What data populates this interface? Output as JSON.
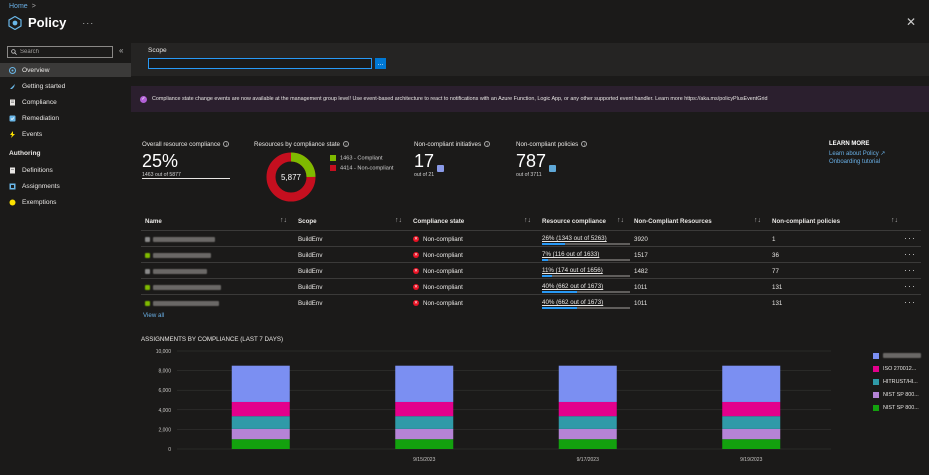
{
  "breadcrumb": {
    "home": "Home",
    "sep": ">"
  },
  "header": {
    "title": "Policy",
    "more": "···",
    "close": "✕"
  },
  "sidebar": {
    "search_placeholder": "Search",
    "collapse": "«",
    "items": [
      {
        "label": "Overview",
        "active": true,
        "icon": "overview-icon"
      },
      {
        "label": "Getting started",
        "icon": "rocket-icon"
      },
      {
        "label": "Compliance",
        "icon": "document-icon"
      },
      {
        "label": "Remediation",
        "icon": "remediation-icon"
      },
      {
        "label": "Events",
        "icon": "lightning-icon"
      }
    ],
    "authoring_heading": "Authoring",
    "authoring_items": [
      {
        "label": "Definitions",
        "icon": "definitions-icon"
      },
      {
        "label": "Assignments",
        "icon": "assignments-icon"
      },
      {
        "label": "Exemptions",
        "icon": "exemptions-icon"
      }
    ]
  },
  "scope": {
    "label": "Scope",
    "button": "..."
  },
  "banner": {
    "text": "Compliance state change events are now available at the management group level! Use event-based architecture to react to notifications with an Azure Function, Logic App, or any other supported event handler. Learn more https://aka.ms/policyPlusEventGrid"
  },
  "kpis": {
    "overall": {
      "label": "Overall resource compliance",
      "value": "25%",
      "sub": "1463 out of 5877"
    },
    "by_state": {
      "label": "Resources by compliance state",
      "total": "5,877",
      "compliant_legend": "1463 - Compliant",
      "noncompliant_legend": "4414 - Non-compliant",
      "compliant": 1463,
      "noncompliant": 4414
    },
    "initiatives": {
      "label": "Non-compliant initiatives",
      "value": "17",
      "sub": "out of 21"
    },
    "policies": {
      "label": "Non-compliant policies",
      "value": "787",
      "sub": "out of 3711"
    }
  },
  "learn_more": {
    "heading": "LEARN MORE",
    "link1": "Learn about Policy ↗",
    "link2": "Onboarding tutorial"
  },
  "table": {
    "headers": [
      "Name",
      "Scope",
      "Compliance state",
      "Resource compliance",
      "Non-Compliant Resources",
      "Non-compliant policies"
    ],
    "sort_icon": "↑↓",
    "rows": [
      {
        "scope": "BuildEnv",
        "state": "Non-compliant",
        "rc": "26% (1343 out of 5263)",
        "pct": 26,
        "ncr": "3920",
        "ncp": "1"
      },
      {
        "scope": "BuildEnv",
        "state": "Non-compliant",
        "rc": "7% (116 out of 1633)",
        "pct": 7,
        "ncr": "1517",
        "ncp": "36"
      },
      {
        "scope": "BuildEnv",
        "state": "Non-compliant",
        "rc": "11% (174 out of 1656)",
        "pct": 11,
        "ncr": "1482",
        "ncp": "77"
      },
      {
        "scope": "BuildEnv",
        "state": "Non-compliant",
        "rc": "40% (662 out of 1673)",
        "pct": 40,
        "ncr": "1011",
        "ncp": "131"
      },
      {
        "scope": "BuildEnv",
        "state": "Non-compliant",
        "rc": "40% (662 out of 1673)",
        "pct": 40,
        "ncr": "1011",
        "ncp": "131"
      }
    ],
    "row_more": "···",
    "view_all": "View all"
  },
  "chart_data": {
    "type": "bar",
    "stacked": true,
    "title": "ASSIGNMENTS BY COMPLIANCE (LAST 7 DAYS)",
    "categories": [
      "",
      "9/15/2023",
      "9/17/2023",
      "9/19/2023"
    ],
    "ylim": [
      0,
      10000
    ],
    "yticks": [
      "0",
      "2,000",
      "4,000",
      "6,000",
      "8,000",
      "10,000"
    ],
    "series": [
      {
        "name": "NIST SP 800...",
        "color": "#13a10e",
        "values": [
          1000,
          1000,
          1000,
          1000
        ]
      },
      {
        "name": "NIST SP 800...",
        "color": "#b583d6",
        "values": [
          1050,
          1050,
          1050,
          1050
        ]
      },
      {
        "name": "HITRUST/HI...",
        "color": "#2f9aa8",
        "values": [
          1300,
          1300,
          1300,
          1300
        ]
      },
      {
        "name": "ISO 270012...",
        "color": "#e3008c",
        "values": [
          1450,
          1450,
          1450,
          1450
        ]
      },
      {
        "name": "",
        "color": "#7b8ff2",
        "values": [
          3700,
          3700,
          3700,
          3700
        ]
      }
    ]
  }
}
